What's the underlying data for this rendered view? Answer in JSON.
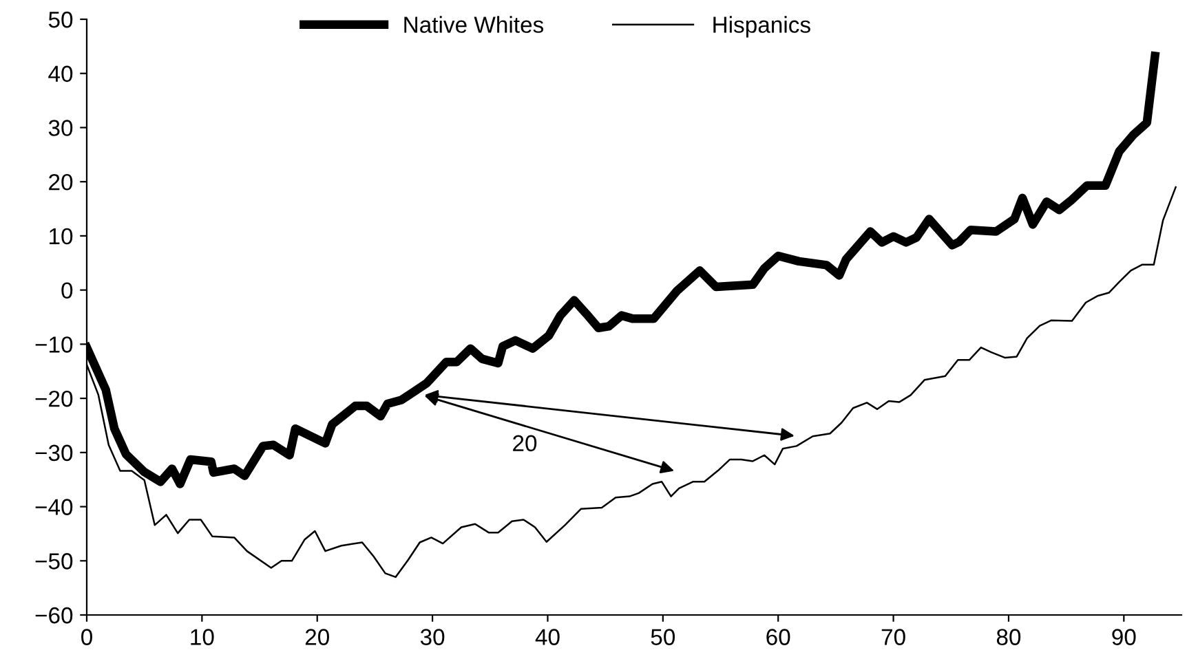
{
  "chart_data": {
    "type": "line",
    "series": [
      {
        "name": "Native Whites",
        "color": "#000000",
        "x": [
          0,
          1.65,
          2.4,
          3.4,
          5,
          6.4,
          7.4,
          8.1,
          9,
          10.8,
          11,
          12.8,
          13.7,
          15.3,
          16.2,
          17.6,
          18.1,
          20.7,
          21.3,
          23.3,
          24.3,
          25.5,
          26.1,
          27.3,
          28.3,
          29.5,
          31.2,
          32.1,
          33.3,
          34.3,
          35.7,
          36.1,
          37.2,
          38.7,
          40.1,
          41.1,
          42.3,
          43.4,
          44.4,
          45.3,
          46.4,
          47.4,
          49.2,
          51.2,
          53.2,
          54.6,
          57.8,
          58.8,
          60,
          61.8,
          64.2,
          65.3,
          65.9,
          68,
          69,
          70,
          71.1,
          72,
          73.1,
          75.1,
          75.7,
          76.7,
          78.9,
          80.5,
          81.2,
          82.1,
          83.3,
          84.4,
          85.4,
          86.8,
          88.4,
          89.6,
          90.8,
          92,
          92.7
        ],
        "values": [
          -10.6,
          -18.4,
          -25.6,
          -30.3,
          -33.6,
          -35.4,
          -33,
          -35.8,
          -31.3,
          -31.7,
          -33.7,
          -33,
          -34.3,
          -28.8,
          -28.6,
          -30.5,
          -25.6,
          -28.3,
          -24.8,
          -21.4,
          -21.4,
          -23.3,
          -21,
          -20.3,
          -18.9,
          -17.2,
          -13.3,
          -13.3,
          -10.8,
          -12.7,
          -13.5,
          -10.4,
          -9.3,
          -10.8,
          -8.4,
          -4.7,
          -1.9,
          -4.5,
          -7,
          -6.7,
          -4.7,
          -5.3,
          -5.3,
          -0.2,
          3.6,
          0.6,
          1,
          4,
          6.3,
          5.3,
          4.6,
          2.7,
          5.7,
          10.8,
          8.8,
          9.9,
          8.8,
          9.7,
          13.1,
          8.3,
          8.9,
          11.1,
          10.8,
          13.1,
          17,
          12.1,
          16.3,
          14.8,
          16.5,
          19.3,
          19.3,
          25.6,
          28.6,
          30.9,
          43.2
        ]
      },
      {
        "name": "Hispanics",
        "color": "#000000",
        "x": [
          0,
          1,
          1.9,
          2.9,
          3.9,
          5,
          5.9,
          6.9,
          7.9,
          8.9,
          9.9,
          10.9,
          12.8,
          13.9,
          16,
          16.9,
          17.8,
          18.9,
          19.8,
          20.7,
          22.1,
          23.9,
          24.9,
          25.9,
          26.8,
          27.9,
          28.9,
          29.9,
          30.9,
          32.5,
          33.7,
          34.9,
          35.7,
          36.9,
          37.9,
          38.9,
          39.9,
          41.5,
          42.9,
          44.7,
          45.9,
          47.1,
          47.9,
          49.1,
          49.9,
          50.7,
          51.4,
          52.6,
          53.6,
          54.8,
          55.8,
          56.8,
          57.8,
          58.8,
          59.7,
          60.4,
          61.6,
          63,
          64.5,
          65.5,
          66.5,
          67.7,
          68.6,
          69.6,
          70.5,
          71.5,
          72.7,
          74.5,
          75.6,
          76.6,
          77.6,
          78.5,
          79.7,
          80.7,
          81.6,
          82.7,
          83.7,
          85.5,
          86.7,
          87.7,
          88.7,
          89.6,
          90.6,
          91.6,
          92.6,
          93.4,
          94.5
        ],
        "values": [
          -13.8,
          -19.3,
          -28.6,
          -33.4,
          -33.4,
          -35.1,
          -43.4,
          -41.5,
          -44.9,
          -42.4,
          -42.4,
          -45.5,
          -45.7,
          -48.2,
          -51.3,
          -50,
          -50,
          -46.1,
          -44.5,
          -48.2,
          -47.2,
          -46.6,
          -49.2,
          -52.3,
          -53,
          -49.8,
          -46.6,
          -45.7,
          -46.8,
          -43.8,
          -43.2,
          -44.8,
          -44.8,
          -42.7,
          -42.4,
          -43.8,
          -46.5,
          -43.4,
          -40.4,
          -40.2,
          -38.3,
          -38.1,
          -37.5,
          -35.8,
          -35.4,
          -38.1,
          -36.6,
          -35.4,
          -35.4,
          -33.3,
          -31.3,
          -31.3,
          -31.6,
          -30.5,
          -32.2,
          -29.3,
          -28.8,
          -27,
          -26.5,
          -24.5,
          -21.8,
          -20.8,
          -22,
          -20.5,
          -20.7,
          -19.4,
          -16.6,
          -15.9,
          -12.9,
          -12.9,
          -10.6,
          -11.5,
          -12.5,
          -12.3,
          -8.9,
          -6.6,
          -5.6,
          -5.7,
          -2.3,
          -1.1,
          -0.5,
          1.5,
          3.6,
          4.7,
          4.7,
          12.9,
          19
        ]
      }
    ],
    "xlim": [
      0,
      95
    ],
    "xticks": [
      0,
      10,
      20,
      30,
      40,
      50,
      60,
      70,
      80,
      90
    ],
    "ylim": [
      -60,
      50
    ],
    "yticks": [
      -60,
      -50,
      -40,
      -30,
      -20,
      -10,
      0,
      10,
      20,
      30,
      40,
      50
    ],
    "grid": false,
    "legend": "top",
    "marker": "none",
    "line_style": "solid",
    "annotations": [
      "20"
    ]
  }
}
